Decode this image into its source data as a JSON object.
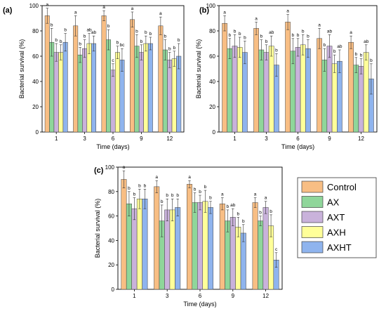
{
  "figure": {
    "legend_entries": [
      {
        "name": "Control",
        "color": "#F8BE84"
      },
      {
        "name": "AX",
        "color": "#8FD69A"
      },
      {
        "name": "AXT",
        "color": "#C9B2DB"
      },
      {
        "name": "AXH",
        "color": "#FFFF99"
      },
      {
        "name": "AXHT",
        "color": "#8FB4EE"
      }
    ]
  },
  "chart_data": [
    {
      "type": "bar",
      "panel_label": "(a)",
      "xlabel": "Time (days)",
      "ylabel": "Bacterial survival (%)",
      "ylim": [
        0,
        100
      ],
      "yticks": [
        0,
        20,
        40,
        60,
        80,
        100
      ],
      "categories": [
        "1",
        "3",
        "6",
        "9",
        "12"
      ],
      "series": [
        {
          "name": "Control",
          "values": [
            92,
            84,
            92,
            89,
            84
          ],
          "errors": [
            6,
            8,
            4,
            6,
            7
          ],
          "letters": [
            "a",
            "a",
            "a",
            "a",
            "a"
          ]
        },
        {
          "name": "AX",
          "values": [
            71,
            61,
            73,
            68,
            65
          ],
          "errors": [
            11,
            6,
            8,
            9,
            8
          ],
          "letters": [
            "b",
            "b",
            "b",
            "b",
            "b"
          ]
        },
        {
          "name": "AXT",
          "values": [
            63,
            66,
            49,
            63,
            57
          ],
          "errors": [
            7,
            7,
            5,
            6,
            6
          ],
          "letters": [
            "b",
            "b",
            "c",
            "b",
            "b"
          ]
        },
        {
          "name": "AXH",
          "values": [
            63,
            70,
            63,
            70,
            58
          ],
          "errors": [
            6,
            8,
            5,
            6,
            6
          ],
          "letters": [
            "b",
            "ab",
            "b",
            "b",
            "b"
          ]
        },
        {
          "name": "AXHT",
          "values": [
            71,
            70,
            57,
            70,
            60
          ],
          "errors": [
            7,
            6,
            9,
            5,
            10
          ],
          "letters": [
            "b",
            "ab",
            "bc",
            "b",
            "b"
          ]
        }
      ]
    },
    {
      "type": "bar",
      "panel_label": "(b)",
      "xlabel": "Time (days)",
      "ylabel": "Bacterial survival (%)",
      "ylim": [
        0,
        100
      ],
      "yticks": [
        0,
        20,
        40,
        60,
        80,
        100
      ],
      "categories": [
        "1",
        "3",
        "6",
        "9",
        "12"
      ],
      "series": [
        {
          "name": "Control",
          "values": [
            86,
            82,
            87,
            74,
            71
          ],
          "errors": [
            6,
            5,
            6,
            8,
            5
          ],
          "letters": [
            "a",
            "a",
            "a",
            "a",
            "a"
          ]
        },
        {
          "name": "AX",
          "values": [
            66,
            65,
            64,
            57,
            53
          ],
          "errors": [
            8,
            8,
            10,
            9,
            6
          ],
          "letters": [
            "b",
            "b",
            "b",
            "b",
            "b"
          ]
        },
        {
          "name": "AXT",
          "values": [
            68,
            63,
            67,
            68,
            52
          ],
          "errors": [
            9,
            6,
            7,
            9,
            6
          ],
          "letters": [
            "b",
            "b",
            "b",
            "ab",
            "b"
          ]
        },
        {
          "name": "AXH",
          "values": [
            67,
            68,
            69,
            54,
            63
          ],
          "errors": [
            8,
            8,
            8,
            7,
            6
          ],
          "letters": [
            "b",
            "ab",
            "b",
            "b",
            "ab"
          ]
        },
        {
          "name": "AXHT",
          "values": [
            63,
            53,
            66,
            56,
            42
          ],
          "errors": [
            9,
            9,
            7,
            9,
            12
          ],
          "letters": [
            "b",
            "b",
            "b",
            "ab",
            "b"
          ]
        }
      ]
    },
    {
      "type": "bar",
      "panel_label": "(c)",
      "xlabel": "Time (days)",
      "ylabel": "Bacterial survival (%)",
      "ylim": [
        0,
        100
      ],
      "yticks": [
        0,
        20,
        40,
        60,
        80,
        100
      ],
      "categories": [
        "1",
        "3",
        "6",
        "9",
        "12"
      ],
      "series": [
        {
          "name": "Control",
          "values": [
            90,
            84,
            86,
            70,
            71
          ],
          "errors": [
            7,
            5,
            3,
            5,
            4
          ],
          "letters": [
            "a",
            "a",
            "a",
            "a",
            "a"
          ]
        },
        {
          "name": "AX",
          "values": [
            70,
            56,
            71,
            56,
            56
          ],
          "errors": [
            10,
            13,
            8,
            9,
            4
          ],
          "letters": [
            "b",
            "b",
            "b",
            "b",
            "b"
          ]
        },
        {
          "name": "AXT",
          "values": [
            66,
            65,
            71,
            59,
            67
          ],
          "errors": [
            9,
            9,
            6,
            7,
            5
          ],
          "letters": [
            "b",
            "b",
            "b",
            "ab",
            "a"
          ]
        },
        {
          "name": "AXH",
          "values": [
            74,
            65,
            72,
            51,
            52
          ],
          "errors": [
            8,
            9,
            9,
            8,
            9
          ],
          "letters": [
            "b",
            "b",
            "b",
            "b",
            "b"
          ]
        },
        {
          "name": "AXHT",
          "values": [
            74,
            67,
            67,
            46,
            24
          ],
          "errors": [
            8,
            7,
            5,
            7,
            6
          ],
          "letters": [
            "b",
            "b",
            "b",
            "b",
            "c"
          ]
        }
      ]
    }
  ]
}
